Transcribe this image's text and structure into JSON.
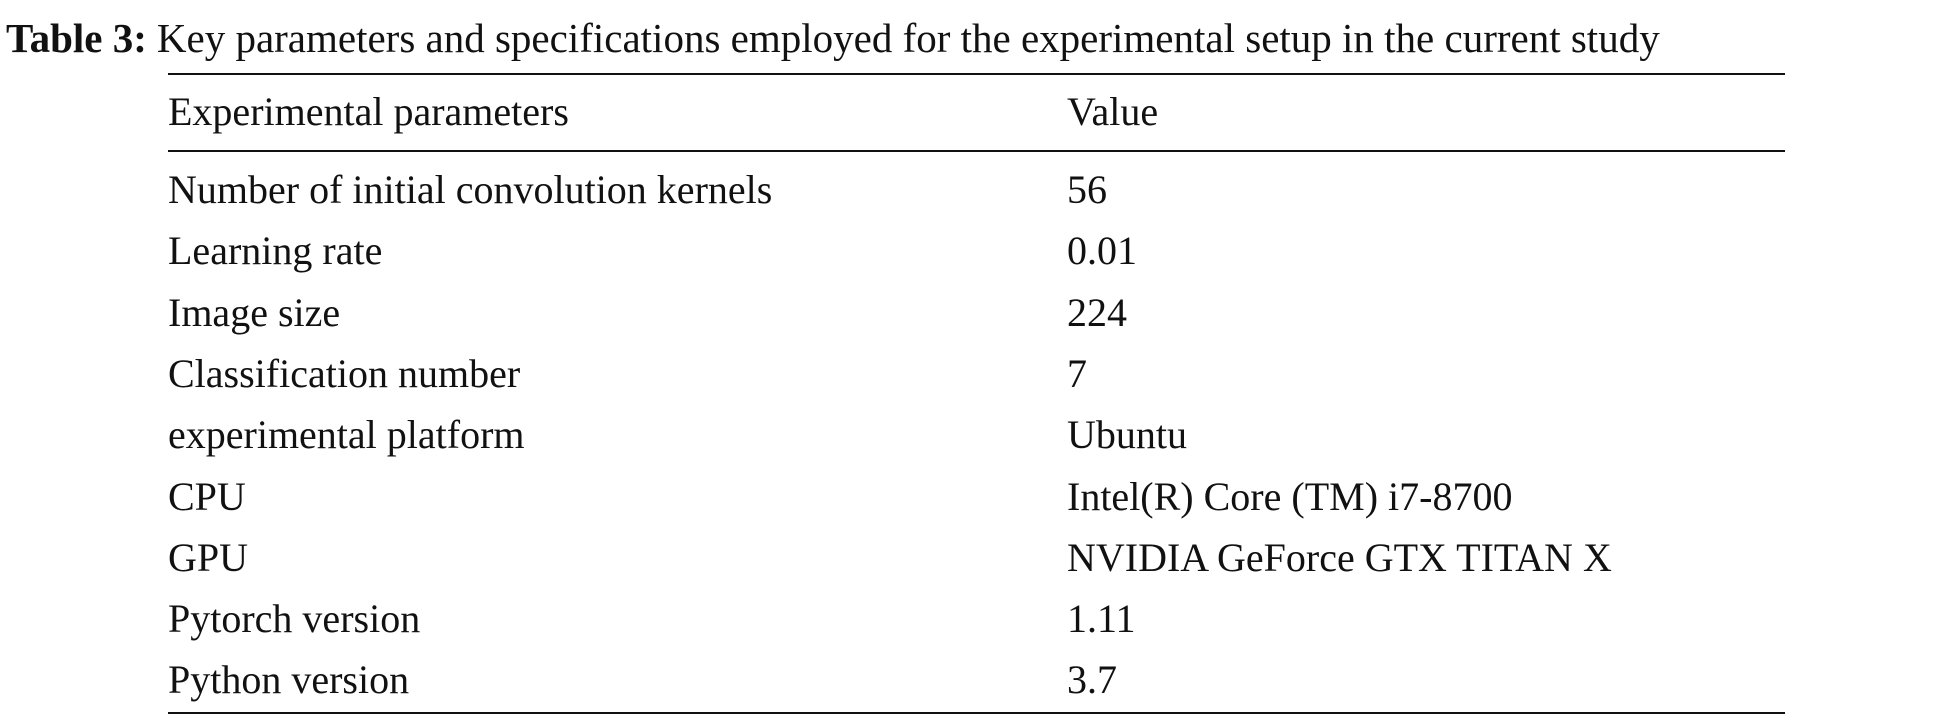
{
  "caption": {
    "label": "Table 3:",
    "text": "Key parameters and specifications employed for the experimental setup in the current study"
  },
  "table": {
    "header": [
      "Experimental parameters",
      "Value"
    ],
    "rows": [
      [
        "Number of initial convolution kernels",
        56
      ],
      [
        "Learning rate",
        0.01
      ],
      [
        "Image size",
        224
      ],
      [
        "Classification number",
        7
      ],
      [
        "experimental platform",
        "Ubuntu"
      ],
      [
        "CPU",
        "Intel(R) Core (TM) i7-8700"
      ],
      [
        "GPU",
        "NVIDIA GeForce GTX TITAN X"
      ],
      [
        "Pytorch version",
        1.11
      ],
      [
        "Python version",
        3.7
      ]
    ]
  }
}
